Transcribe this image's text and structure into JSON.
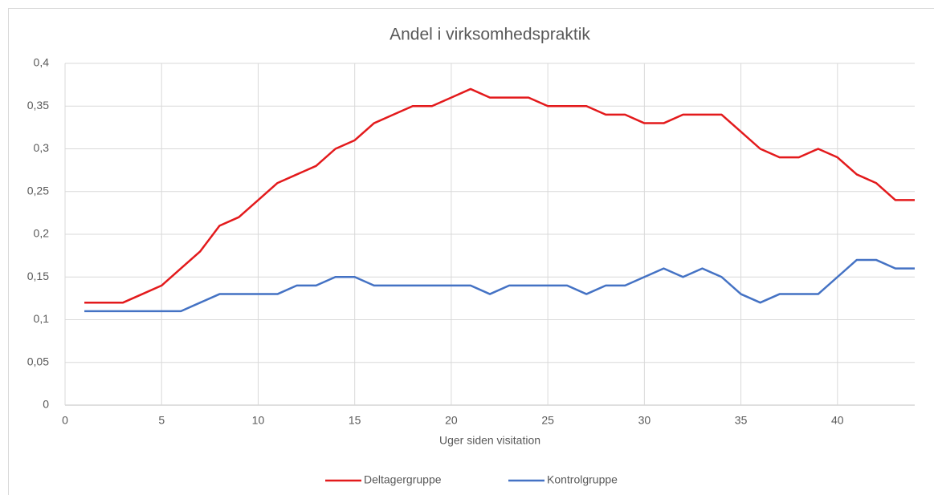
{
  "chart_data": {
    "type": "line",
    "title": "Andel i virksomhedspraktik",
    "x_label": "Uger siden visitation",
    "x": [
      1,
      2,
      3,
      4,
      5,
      6,
      7,
      8,
      9,
      10,
      11,
      12,
      13,
      14,
      15,
      16,
      17,
      18,
      19,
      20,
      21,
      22,
      23,
      24,
      25,
      26,
      27,
      28,
      29,
      30,
      31,
      32,
      33,
      34,
      35,
      36,
      37,
      38,
      39,
      40,
      41,
      42,
      43,
      44
    ],
    "series": [
      {
        "name": "Deltagergruppe",
        "color": "#e31a1c",
        "values": [
          0.12,
          0.12,
          0.12,
          0.13,
          0.14,
          0.16,
          0.18,
          0.21,
          0.22,
          0.24,
          0.26,
          0.27,
          0.28,
          0.3,
          0.31,
          0.33,
          0.34,
          0.35,
          0.35,
          0.36,
          0.37,
          0.36,
          0.36,
          0.36,
          0.35,
          0.35,
          0.35,
          0.34,
          0.34,
          0.33,
          0.33,
          0.34,
          0.34,
          0.34,
          0.32,
          0.3,
          0.29,
          0.29,
          0.3,
          0.29,
          0.27,
          0.26,
          0.24,
          0.24
        ]
      },
      {
        "name": "Kontrolgruppe",
        "color": "#4472c4",
        "values": [
          0.11,
          0.11,
          0.11,
          0.11,
          0.11,
          0.11,
          0.12,
          0.13,
          0.13,
          0.13,
          0.13,
          0.14,
          0.14,
          0.15,
          0.15,
          0.14,
          0.14,
          0.14,
          0.14,
          0.14,
          0.14,
          0.13,
          0.14,
          0.14,
          0.14,
          0.14,
          0.13,
          0.14,
          0.14,
          0.15,
          0.16,
          0.15,
          0.16,
          0.15,
          0.13,
          0.12,
          0.13,
          0.13,
          0.13,
          0.15,
          0.17,
          0.17,
          0.16,
          0.16
        ]
      }
    ],
    "xlim": [
      0,
      44
    ],
    "xticks": [
      0,
      5,
      10,
      15,
      20,
      25,
      30,
      35,
      40
    ],
    "ylim": [
      0,
      0.4
    ],
    "yticks": [
      0,
      {
        "value": 0.05,
        "label": "0,05"
      },
      {
        "value": 0.1,
        "label": "0,1"
      },
      {
        "value": 0.15,
        "label": "0,15"
      },
      {
        "value": 0.2,
        "label": "0,2"
      },
      {
        "value": 0.25,
        "label": "0,25"
      },
      {
        "value": 0.3,
        "label": "0,3"
      },
      {
        "value": 0.35,
        "label": "0,35"
      },
      {
        "value": 0.4,
        "label": "0,4"
      }
    ],
    "grid": true,
    "legend": "bottom"
  }
}
